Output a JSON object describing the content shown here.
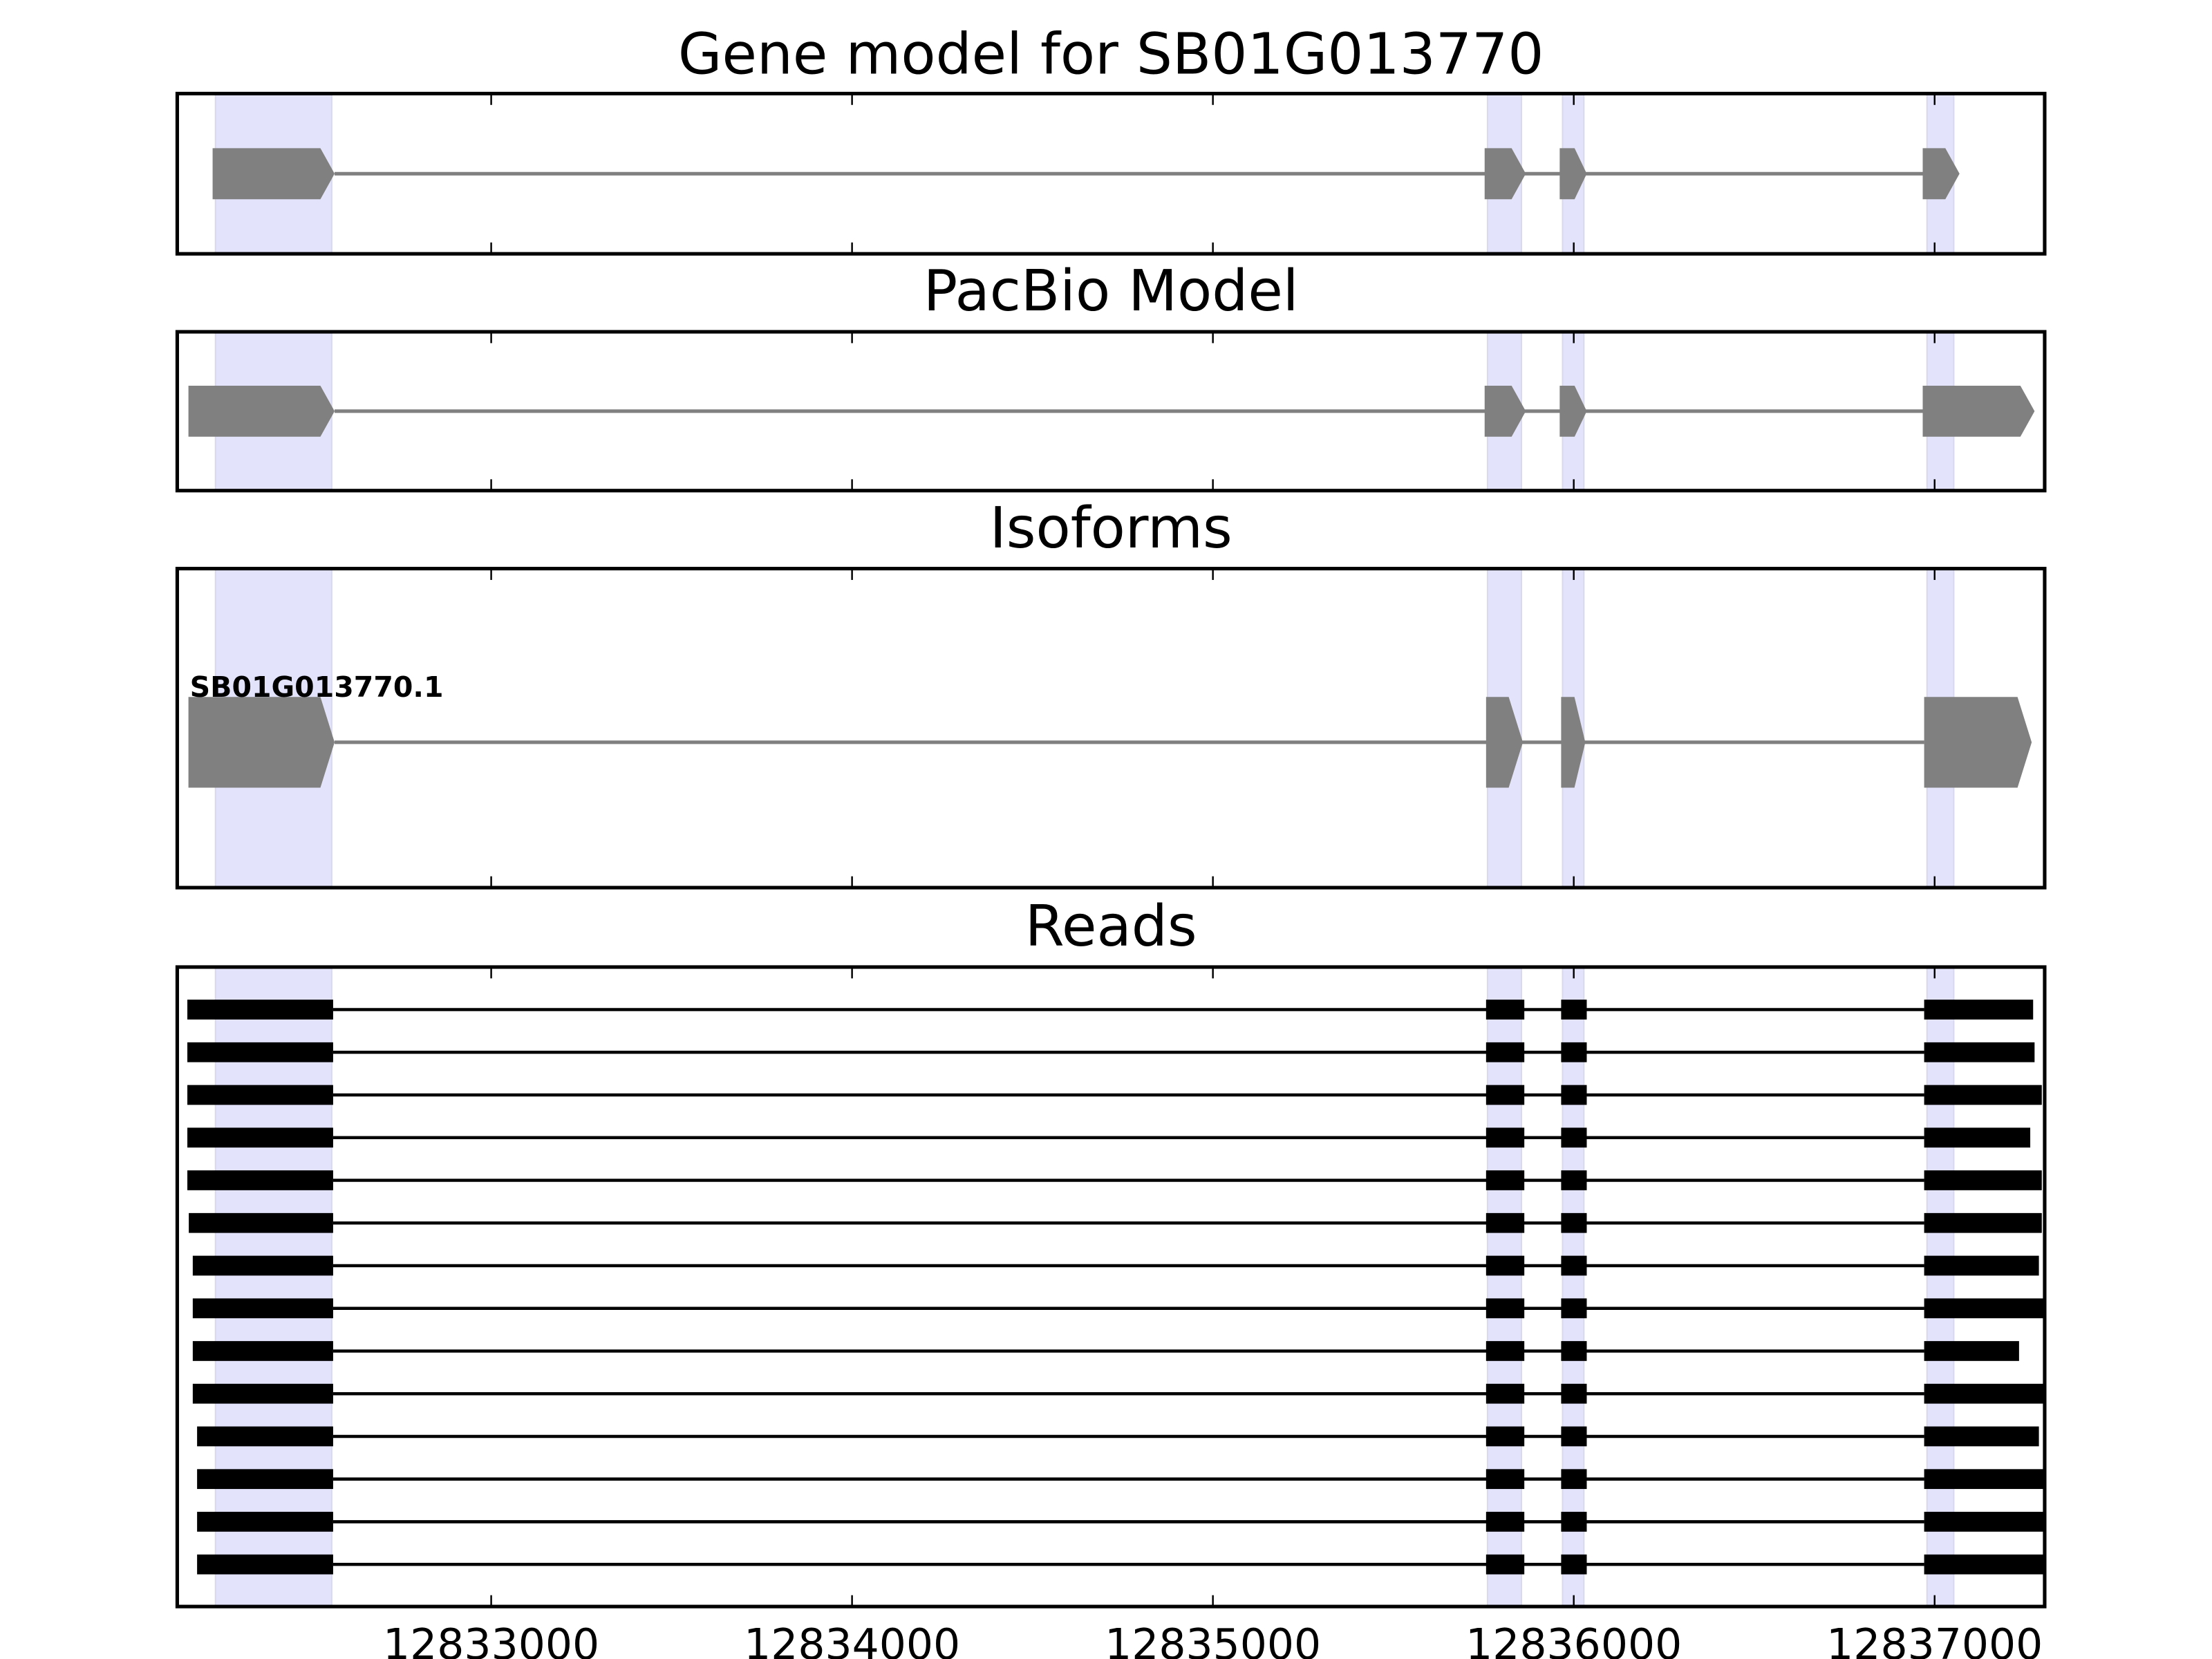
{
  "chart_data": {
    "type": "gene-track",
    "xlim": [
      12832130,
      12837305
    ],
    "xticks": [
      12833000,
      12834000,
      12835000,
      12836000,
      12837000
    ],
    "xtick_labels": [
      "12833000",
      "12834000",
      "12835000",
      "12836000",
      "12837000"
    ],
    "highlight_regions": [
      [
        12832236,
        12832558
      ],
      [
        12835761,
        12835855
      ],
      [
        12835969,
        12836028
      ],
      [
        12836979,
        12837053
      ]
    ],
    "colors": {
      "exon": "#808080",
      "read": "#000000",
      "highlight": "#e3e3fc",
      "axes": "#000000"
    },
    "panels": [
      {
        "title": "Gene model for SB01G013770",
        "kind": "model",
        "tracks": [
          {
            "label": "",
            "exons": [
              [
                12832228,
                12832566
              ],
              [
                12835753,
                12835867
              ],
              [
                12835961,
                12836036
              ],
              [
                12836967,
                12837069
              ]
            ]
          }
        ]
      },
      {
        "title": "PacBio Model",
        "kind": "model",
        "tracks": [
          {
            "label": "",
            "exons": [
              [
                12832161,
                12832566
              ],
              [
                12835753,
                12835867
              ],
              [
                12835961,
                12836036
              ],
              [
                12836967,
                12837277
              ]
            ]
          }
        ]
      },
      {
        "title": "Isoforms",
        "kind": "isoform",
        "tracks": [
          {
            "label": "SB01G013770.1",
            "exons": [
              [
                12832161,
                12832566
              ],
              [
                12835757,
                12835859
              ],
              [
                12835965,
                12836032
              ],
              [
                12836971,
                12837269
              ]
            ]
          }
        ]
      },
      {
        "title": "Reads",
        "kind": "reads",
        "tracks": [
          {
            "exons": [
              [
                12832158,
                12832562
              ],
              [
                12835757,
                12835863
              ],
              [
                12835965,
                12836036
              ],
              [
                12836971,
                12837273
              ]
            ]
          },
          {
            "exons": [
              [
                12832158,
                12832562
              ],
              [
                12835757,
                12835863
              ],
              [
                12835965,
                12836036
              ],
              [
                12836971,
                12837277
              ]
            ]
          },
          {
            "exons": [
              [
                12832158,
                12832562
              ],
              [
                12835757,
                12835863
              ],
              [
                12835965,
                12836036
              ],
              [
                12836971,
                12837297
              ]
            ]
          },
          {
            "exons": [
              [
                12832158,
                12832562
              ],
              [
                12835757,
                12835863
              ],
              [
                12835965,
                12836036
              ],
              [
                12836971,
                12837265
              ]
            ]
          },
          {
            "exons": [
              [
                12832158,
                12832562
              ],
              [
                12835757,
                12835863
              ],
              [
                12835965,
                12836036
              ],
              [
                12836971,
                12837297
              ]
            ]
          },
          {
            "exons": [
              [
                12832162,
                12832562
              ],
              [
                12835757,
                12835863
              ],
              [
                12835965,
                12836036
              ],
              [
                12836971,
                12837297
              ]
            ]
          },
          {
            "exons": [
              [
                12832173,
                12832562
              ],
              [
                12835757,
                12835863
              ],
              [
                12835965,
                12836036
              ],
              [
                12836971,
                12837289
              ]
            ]
          },
          {
            "exons": [
              [
                12832173,
                12832562
              ],
              [
                12835757,
                12835863
              ],
              [
                12835965,
                12836036
              ],
              [
                12836971,
                12837301
              ]
            ]
          },
          {
            "exons": [
              [
                12832173,
                12832562
              ],
              [
                12835757,
                12835863
              ],
              [
                12835965,
                12836036
              ],
              [
                12836971,
                12837234
              ]
            ]
          },
          {
            "exons": [
              [
                12832173,
                12832562
              ],
              [
                12835757,
                12835863
              ],
              [
                12835965,
                12836036
              ],
              [
                12836971,
                12837305
              ]
            ]
          },
          {
            "exons": [
              [
                12832185,
                12832562
              ],
              [
                12835757,
                12835863
              ],
              [
                12835965,
                12836036
              ],
              [
                12836971,
                12837289
              ]
            ]
          },
          {
            "exons": [
              [
                12832185,
                12832562
              ],
              [
                12835757,
                12835863
              ],
              [
                12835965,
                12836036
              ],
              [
                12836971,
                12837305
              ]
            ]
          },
          {
            "exons": [
              [
                12832185,
                12832562
              ],
              [
                12835757,
                12835863
              ],
              [
                12835965,
                12836036
              ],
              [
                12836971,
                12837305
              ]
            ]
          },
          {
            "exons": [
              [
                12832185,
                12832562
              ],
              [
                12835757,
                12835863
              ],
              [
                12835965,
                12836036
              ],
              [
                12836971,
                12837305
              ]
            ]
          }
        ]
      }
    ]
  }
}
